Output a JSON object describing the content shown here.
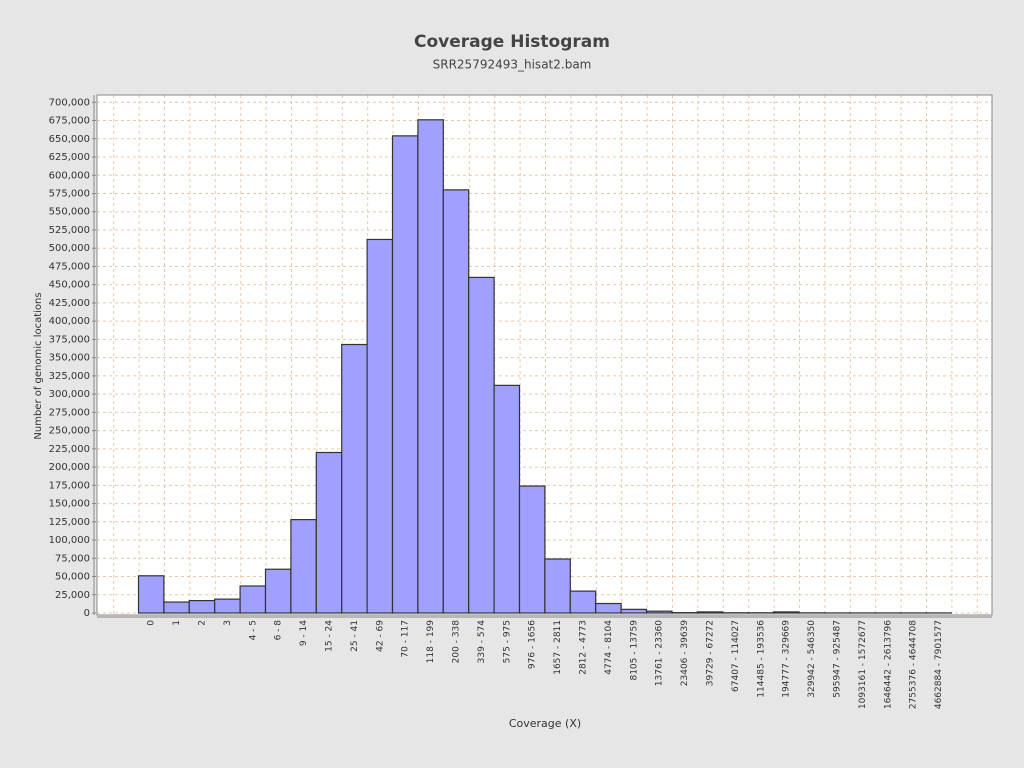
{
  "chart_data": {
    "type": "bar",
    "title": "Coverage Histogram",
    "subtitle": "SRR25792493_hisat2.bam",
    "x_label": "Coverage (X)",
    "y_label": "Number of genomic locations",
    "categories": [
      "0",
      "1",
      "2",
      "3",
      "4 - 5",
      "6 - 8",
      "9 - 14",
      "15 - 24",
      "25 - 41",
      "42 - 69",
      "70 - 117",
      "118 - 199",
      "200 - 338",
      "339 - 574",
      "575 - 975",
      "976 - 1656",
      "1657 - 2811",
      "2812 - 4773",
      "4774 - 8104",
      "8105 - 13759",
      "13761 - 23360",
      "23406 - 39639",
      "39729 - 67272",
      "67407 - 114027",
      "114485 - 193536",
      "194777 - 329669",
      "329942 - 546350",
      "595947 - 925487",
      "1093161 - 1572677",
      "1646442 - 2613796",
      "2755376 - 4644708",
      "4662884 - 7901577"
    ],
    "values": [
      51000,
      15000,
      17000,
      19000,
      37000,
      60000,
      128000,
      220000,
      368000,
      512000,
      654000,
      676000,
      580000,
      460000,
      312000,
      174000,
      74000,
      30000,
      13000,
      5000,
      2500,
      500,
      1500,
      300,
      300,
      1500,
      200,
      100,
      100,
      100,
      100,
      100
    ],
    "color": "#a0a0ff",
    "edge_color": "#333333",
    "ylim": [
      0,
      710000
    ],
    "yticks": [
      {
        "value": 0,
        "label": "0"
      },
      {
        "value": 25000,
        "label": "25,000"
      },
      {
        "value": 50000,
        "label": "50,000"
      },
      {
        "value": 75000,
        "label": "75,000"
      },
      {
        "value": 100000,
        "label": "100,000"
      },
      {
        "value": 125000,
        "label": "125,000"
      },
      {
        "value": 150000,
        "label": "150,000"
      },
      {
        "value": 175000,
        "label": "175,000"
      },
      {
        "value": 200000,
        "label": "200,000"
      },
      {
        "value": 225000,
        "label": "225,000"
      },
      {
        "value": 250000,
        "label": "250,000"
      },
      {
        "value": 275000,
        "label": "275,000"
      },
      {
        "value": 300000,
        "label": "300,000"
      },
      {
        "value": 325000,
        "label": "325,000"
      },
      {
        "value": 350000,
        "label": "350,000"
      },
      {
        "value": 375000,
        "label": "375,000"
      },
      {
        "value": 400000,
        "label": "400,000"
      },
      {
        "value": 425000,
        "label": "425,000"
      },
      {
        "value": 450000,
        "label": "450,000"
      },
      {
        "value": 475000,
        "label": "475,000"
      },
      {
        "value": 500000,
        "label": "500,000"
      },
      {
        "value": 525000,
        "label": "525,000"
      },
      {
        "value": 550000,
        "label": "550,000"
      },
      {
        "value": 575000,
        "label": "575,000"
      },
      {
        "value": 600000,
        "label": "600,000"
      },
      {
        "value": 625000,
        "label": "625,000"
      },
      {
        "value": 650000,
        "label": "650,000"
      },
      {
        "value": 675000,
        "label": "675,000"
      },
      {
        "value": 700000,
        "label": "700,000"
      }
    ],
    "grid": true
  }
}
